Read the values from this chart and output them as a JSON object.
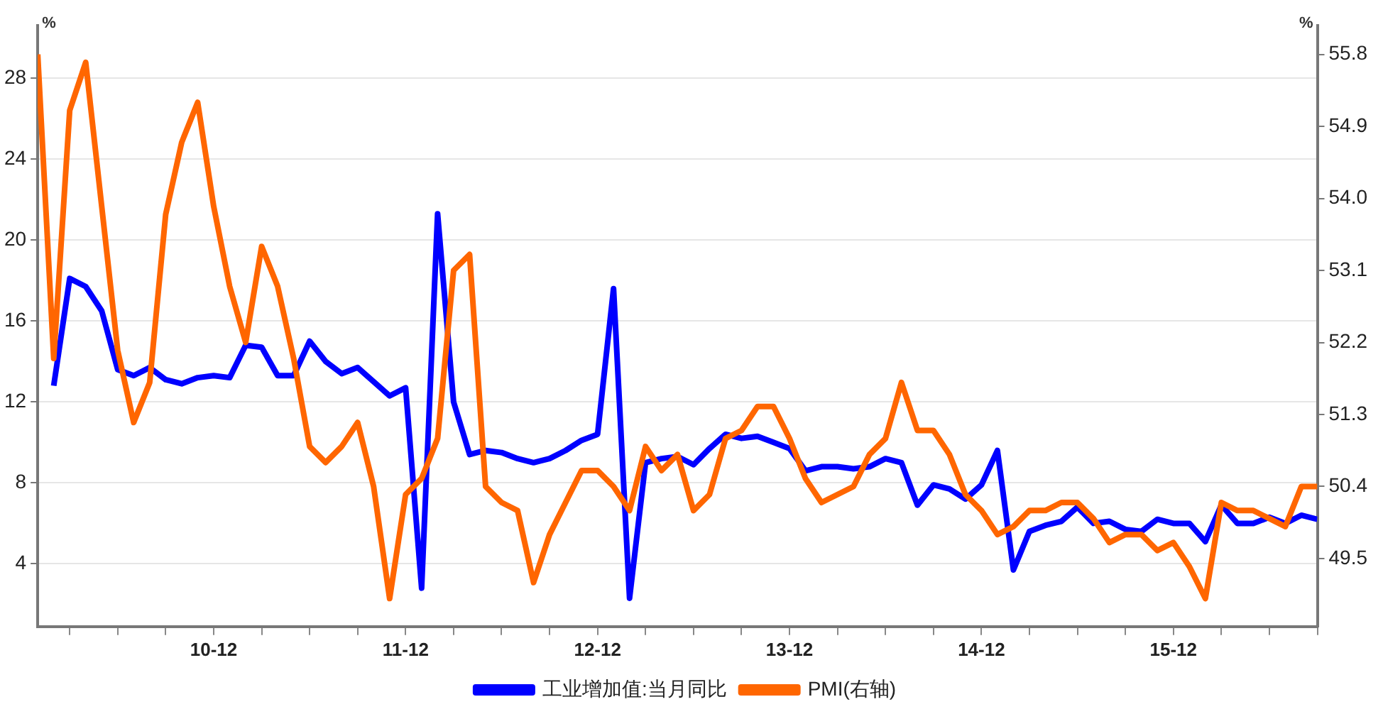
{
  "chart_data": {
    "type": "line",
    "ylabel": "%",
    "y2label": "%",
    "x": [
      "2010-01",
      "2010-02",
      "2010-03",
      "2010-04",
      "2010-05",
      "2010-06",
      "2010-07",
      "2010-08",
      "2010-09",
      "2010-10",
      "2010-11",
      "2010-12",
      "2011-01",
      "2011-02",
      "2011-03",
      "2011-04",
      "2011-05",
      "2011-06",
      "2011-07",
      "2011-08",
      "2011-09",
      "2011-10",
      "2011-11",
      "2011-12",
      "2012-01",
      "2012-02",
      "2012-03",
      "2012-04",
      "2012-05",
      "2012-06",
      "2012-07",
      "2012-08",
      "2012-09",
      "2012-10",
      "2012-11",
      "2012-12",
      "2013-01",
      "2013-02",
      "2013-03",
      "2013-04",
      "2013-05",
      "2013-06",
      "2013-07",
      "2013-08",
      "2013-09",
      "2013-10",
      "2013-11",
      "2013-12",
      "2014-01",
      "2014-02",
      "2014-03",
      "2014-04",
      "2014-05",
      "2014-06",
      "2014-07",
      "2014-08",
      "2014-09",
      "2014-10",
      "2014-11",
      "2014-12",
      "2015-01",
      "2015-02",
      "2015-03",
      "2015-04",
      "2015-05",
      "2015-06",
      "2015-07",
      "2015-08",
      "2015-09",
      "2015-10",
      "2015-11",
      "2015-12",
      "2016-01",
      "2016-02",
      "2016-03",
      "2016-04",
      "2016-05",
      "2016-06",
      "2016-07",
      "2016-08",
      "2016-09"
    ],
    "series": [
      {
        "name": "工业增加值:当月同比",
        "color": "#0000ff",
        "values": [
          null,
          12.8,
          18.1,
          17.7,
          16.5,
          13.6,
          13.3,
          13.7,
          13.1,
          12.9,
          13.2,
          13.3,
          13.2,
          14.8,
          14.7,
          13.3,
          13.3,
          15.0,
          14.0,
          13.4,
          13.7,
          13.0,
          12.3,
          12.7,
          2.8,
          21.3,
          12.0,
          9.4,
          9.6,
          9.5,
          9.2,
          9.0,
          9.2,
          9.6,
          10.1,
          10.4,
          17.6,
          2.3,
          9.0,
          9.2,
          9.3,
          8.9,
          9.7,
          10.4,
          10.2,
          10.3,
          10.0,
          9.7,
          8.6,
          8.8,
          8.8,
          8.7,
          8.8,
          9.2,
          9.0,
          6.9,
          7.9,
          7.7,
          7.2,
          7.9,
          9.6,
          3.7,
          5.6,
          5.9,
          6.1,
          6.8,
          6.0,
          6.1,
          5.7,
          5.6,
          6.2,
          6.0,
          6.0,
          5.1,
          6.9,
          6.0,
          6.0,
          6.3,
          6.0,
          6.4,
          6.2
        ]
      },
      {
        "name": "PMI(右轴)",
        "color": "#ff6600",
        "axis": "y2",
        "values": [
          55.8,
          52.0,
          55.1,
          55.7,
          53.9,
          52.1,
          51.2,
          51.7,
          53.8,
          54.7,
          55.2,
          53.9,
          52.9,
          52.2,
          53.4,
          52.9,
          52.0,
          50.9,
          50.7,
          50.9,
          51.2,
          50.4,
          49.0,
          50.3,
          50.5,
          51.0,
          53.1,
          53.3,
          50.4,
          50.2,
          50.1,
          49.2,
          49.8,
          50.2,
          50.6,
          50.6,
          50.4,
          50.1,
          50.9,
          50.6,
          50.8,
          50.1,
          50.3,
          51.0,
          51.1,
          51.4,
          51.4,
          51.0,
          50.5,
          50.2,
          50.3,
          50.4,
          50.8,
          51.0,
          51.7,
          51.1,
          51.1,
          50.8,
          50.3,
          50.1,
          49.8,
          49.9,
          50.1,
          50.1,
          50.2,
          50.2,
          50.0,
          49.7,
          49.8,
          49.8,
          49.6,
          49.7,
          49.4,
          49.0,
          50.2,
          50.1,
          50.1,
          50.0,
          49.9,
          50.4,
          50.4
        ]
      }
    ],
    "xlim": [
      "2010-01",
      "2016-09"
    ],
    "xticks": [
      {
        "value": "2010-03",
        "label": null
      },
      {
        "value": "2010-06",
        "label": null
      },
      {
        "value": "2010-09",
        "label": null
      },
      {
        "value": "2010-12",
        "label": "10-12"
      },
      {
        "value": "2011-03",
        "label": null
      },
      {
        "value": "2011-06",
        "label": null
      },
      {
        "value": "2011-09",
        "label": null
      },
      {
        "value": "2011-12",
        "label": "11-12"
      },
      {
        "value": "2012-03",
        "label": null
      },
      {
        "value": "2012-06",
        "label": null
      },
      {
        "value": "2012-09",
        "label": null
      },
      {
        "value": "2012-12",
        "label": "12-12"
      },
      {
        "value": "2013-03",
        "label": null
      },
      {
        "value": "2013-06",
        "label": null
      },
      {
        "value": "2013-09",
        "label": null
      },
      {
        "value": "2013-12",
        "label": "13-12"
      },
      {
        "value": "2014-03",
        "label": null
      },
      {
        "value": "2014-06",
        "label": null
      },
      {
        "value": "2014-09",
        "label": null
      },
      {
        "value": "2014-12",
        "label": "14-12"
      },
      {
        "value": "2015-03",
        "label": null
      },
      {
        "value": "2015-06",
        "label": null
      },
      {
        "value": "2015-09",
        "label": null
      },
      {
        "value": "2015-12",
        "label": "15-12"
      },
      {
        "value": "2016-03",
        "label": null
      },
      {
        "value": "2016-06",
        "label": null
      },
      {
        "value": "2016-09",
        "label": null
      }
    ],
    "ylim": [
      0.9,
      30.6
    ],
    "yticks": [
      4,
      8,
      12,
      16,
      20,
      24,
      28
    ],
    "y2lim": [
      48.65,
      56.16
    ],
    "y2ticks": [
      49.5,
      50.4,
      51.3,
      52.2,
      53.1,
      {
        "value": 54.0,
        "label": "54.0"
      },
      54.9,
      55.8
    ],
    "grid": "y",
    "legend": "bottom",
    "marker": "none",
    "line_style": "solid"
  }
}
